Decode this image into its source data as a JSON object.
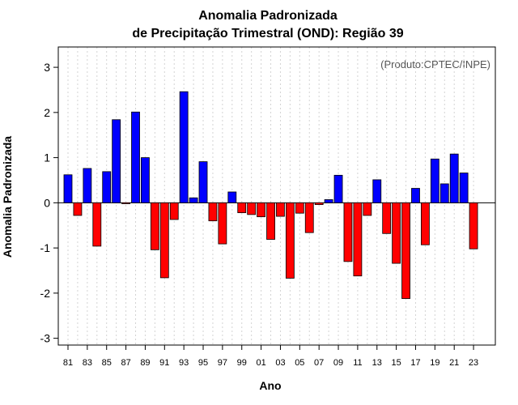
{
  "chart_data": {
    "type": "bar",
    "title": "Anomalia Padronizada",
    "subtitle": "de Precipitação Trimestral (OND): Região 39",
    "xlabel": "Ano",
    "ylabel": "Anomalia Padronizada",
    "credit": "(Produto:CPTEC/INPE)",
    "ylim": [
      -3.15,
      3.45
    ],
    "yticks": [
      -3,
      -2,
      -1,
      0,
      1,
      2,
      3
    ],
    "tick_labels": [
      "81",
      "83",
      "85",
      "87",
      "89",
      "91",
      "93",
      "95",
      "97",
      "99",
      "01",
      "03",
      "05",
      "07",
      "09",
      "11",
      "13",
      "15",
      "17",
      "19",
      "21",
      "23"
    ],
    "categories": [
      "1981",
      "1982",
      "1983",
      "1984",
      "1985",
      "1986",
      "1987",
      "1988",
      "1989",
      "1990",
      "1991",
      "1992",
      "1993",
      "1994",
      "1995",
      "1996",
      "1997",
      "1998",
      "1999",
      "2000",
      "2001",
      "2002",
      "2003",
      "2004",
      "2005",
      "2006",
      "2007",
      "2008",
      "2009",
      "2010",
      "2011",
      "2012",
      "2013",
      "2014",
      "2015",
      "2016",
      "2017",
      "2018",
      "2019",
      "2020",
      "2021",
      "2022",
      "2023"
    ],
    "values": [
      0.62,
      -0.28,
      0.76,
      -0.96,
      0.69,
      1.84,
      -0.02,
      2.01,
      1.0,
      -1.04,
      -1.66,
      -0.37,
      2.46,
      0.11,
      0.91,
      -0.4,
      -0.91,
      0.24,
      -0.22,
      -0.26,
      -0.31,
      -0.81,
      -0.3,
      -1.67,
      -0.23,
      -0.66,
      -0.04,
      0.07,
      0.61,
      -1.3,
      -1.62,
      -0.28,
      0.51,
      -0.68,
      -1.34,
      -2.12,
      0.32,
      -0.93,
      0.97,
      0.42,
      1.08,
      0.66,
      -1.02
    ],
    "positive_color": "#0000ff",
    "negative_color": "#ff0000",
    "grid": "dotted vertical"
  }
}
